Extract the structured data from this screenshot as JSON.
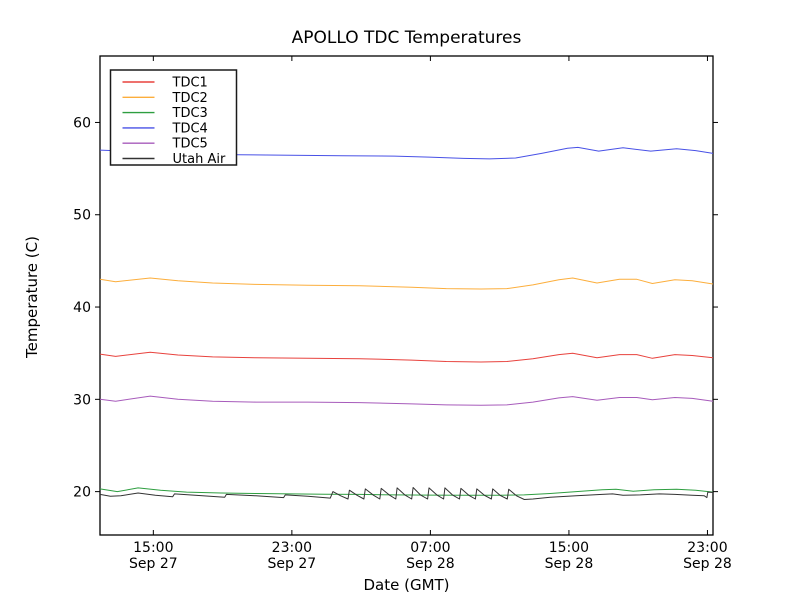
{
  "figure": {
    "title": "APOLLO TDC Temperatures",
    "xlabel": "Date (GMT)",
    "ylabel": "Temperature (C)"
  },
  "chart_data": {
    "type": "line",
    "title": "APOLLO TDC Temperatures",
    "xlabel": "Date (GMT)",
    "ylabel": "Temperature (C)",
    "x_unit": "hours elapsed, axis spans ~12:00 Sep 27 GMT to ~23:20 Sep 28 GMT",
    "xlim": [
      0,
      35.4
    ],
    "ylim": [
      15.3,
      67.2
    ],
    "yticks": [
      20,
      30,
      40,
      50,
      60
    ],
    "xticks": [
      {
        "h": 3.08,
        "time": "15:00",
        "date": "Sep 27"
      },
      {
        "h": 11.08,
        "time": "23:00",
        "date": "Sep 27"
      },
      {
        "h": 19.08,
        "time": "07:00",
        "date": "Sep 28"
      },
      {
        "h": 27.08,
        "time": "15:00",
        "date": "Sep 28"
      },
      {
        "h": 35.08,
        "time": "23:00",
        "date": "Sep 28"
      }
    ],
    "grid": false,
    "legend": {
      "position": "upper-left",
      "border_color": "#1a1a1a",
      "background": "#ffffff"
    },
    "axis_color": "#000000",
    "series": [
      {
        "name": "TDC1",
        "color": "#e8423d",
        "points": [
          [
            0,
            34.9
          ],
          [
            0.9,
            34.65
          ],
          [
            2.9,
            35.1
          ],
          [
            4.5,
            34.8
          ],
          [
            6.5,
            34.6
          ],
          [
            9,
            34.5
          ],
          [
            12,
            34.45
          ],
          [
            15,
            34.4
          ],
          [
            18,
            34.25
          ],
          [
            20,
            34.1
          ],
          [
            22,
            34.05
          ],
          [
            23.5,
            34.1
          ],
          [
            25,
            34.4
          ],
          [
            26.5,
            34.85
          ],
          [
            27.3,
            35.0
          ],
          [
            28.7,
            34.5
          ],
          [
            30,
            34.85
          ],
          [
            31,
            34.85
          ],
          [
            31.9,
            34.45
          ],
          [
            33.2,
            34.85
          ],
          [
            34.2,
            34.75
          ],
          [
            35.4,
            34.5
          ]
        ]
      },
      {
        "name": "TDC2",
        "color": "#fcae3c",
        "points": [
          [
            0,
            43.0
          ],
          [
            0.9,
            42.75
          ],
          [
            2.9,
            43.15
          ],
          [
            4.5,
            42.85
          ],
          [
            6.5,
            42.6
          ],
          [
            9,
            42.45
          ],
          [
            12,
            42.35
          ],
          [
            15,
            42.3
          ],
          [
            18,
            42.15
          ],
          [
            20,
            42.0
          ],
          [
            22,
            41.95
          ],
          [
            23.5,
            42.0
          ],
          [
            25,
            42.4
          ],
          [
            26.5,
            42.95
          ],
          [
            27.3,
            43.15
          ],
          [
            28.7,
            42.6
          ],
          [
            30,
            43.0
          ],
          [
            31,
            43.0
          ],
          [
            31.9,
            42.55
          ],
          [
            33.2,
            42.95
          ],
          [
            34.2,
            42.85
          ],
          [
            35.4,
            42.5
          ]
        ]
      },
      {
        "name": "TDC3",
        "color": "#2e9e40",
        "points": [
          [
            0,
            20.3
          ],
          [
            1,
            20.0
          ],
          [
            2.2,
            20.4
          ],
          [
            3.5,
            20.15
          ],
          [
            5,
            19.95
          ],
          [
            7,
            19.85
          ],
          [
            9,
            19.8
          ],
          [
            11,
            19.75
          ],
          [
            13,
            19.72
          ],
          [
            15,
            19.7
          ],
          [
            17,
            19.65
          ],
          [
            19,
            19.62
          ],
          [
            21,
            19.6
          ],
          [
            23,
            19.6
          ],
          [
            24.5,
            19.65
          ],
          [
            26,
            19.8
          ],
          [
            27.5,
            20.0
          ],
          [
            29,
            20.2
          ],
          [
            29.8,
            20.25
          ],
          [
            30.8,
            20.05
          ],
          [
            32,
            20.2
          ],
          [
            33.3,
            20.25
          ],
          [
            34.4,
            20.15
          ],
          [
            35.4,
            19.95
          ]
        ]
      },
      {
        "name": "TDC4",
        "color": "#4851e6",
        "points": [
          [
            0,
            57.0
          ],
          [
            1.5,
            56.9
          ],
          [
            3,
            56.8
          ],
          [
            5,
            56.6
          ],
          [
            8,
            56.5
          ],
          [
            11,
            56.45
          ],
          [
            14,
            56.4
          ],
          [
            17,
            56.35
          ],
          [
            19,
            56.25
          ],
          [
            21,
            56.1
          ],
          [
            22.5,
            56.05
          ],
          [
            24,
            56.15
          ],
          [
            25.5,
            56.65
          ],
          [
            27,
            57.2
          ],
          [
            27.6,
            57.3
          ],
          [
            28.8,
            56.9
          ],
          [
            30.2,
            57.25
          ],
          [
            31.8,
            56.9
          ],
          [
            33.3,
            57.15
          ],
          [
            34.4,
            56.95
          ],
          [
            35.4,
            56.65
          ]
        ]
      },
      {
        "name": "TDC5",
        "color": "#a75bbb",
        "points": [
          [
            0,
            30.0
          ],
          [
            0.9,
            29.8
          ],
          [
            2.9,
            30.35
          ],
          [
            4.5,
            30.0
          ],
          [
            6.5,
            29.8
          ],
          [
            9,
            29.7
          ],
          [
            12,
            29.7
          ],
          [
            15,
            29.65
          ],
          [
            18,
            29.5
          ],
          [
            20,
            29.4
          ],
          [
            22,
            29.35
          ],
          [
            23.5,
            29.4
          ],
          [
            25,
            29.7
          ],
          [
            26.5,
            30.15
          ],
          [
            27.3,
            30.3
          ],
          [
            28.7,
            29.9
          ],
          [
            30,
            30.2
          ],
          [
            31,
            30.2
          ],
          [
            31.9,
            29.95
          ],
          [
            33.2,
            30.2
          ],
          [
            34.2,
            30.1
          ],
          [
            35.4,
            29.8
          ]
        ]
      },
      {
        "name": "Utah Air",
        "color": "#333333",
        "points": [
          [
            0,
            19.7
          ],
          [
            0.6,
            19.5
          ],
          [
            1.2,
            19.55
          ],
          [
            2.2,
            19.85
          ],
          [
            3.2,
            19.6
          ],
          [
            4.2,
            19.45
          ],
          [
            4.3,
            19.75
          ],
          [
            5.5,
            19.6
          ],
          [
            7.2,
            19.4
          ],
          [
            7.3,
            19.7
          ],
          [
            9,
            19.55
          ],
          [
            10.6,
            19.35
          ],
          [
            10.7,
            19.65
          ],
          [
            12,
            19.5
          ],
          [
            13.3,
            19.3
          ],
          [
            13.45,
            20.0
          ],
          [
            13.9,
            19.55
          ],
          [
            14.32,
            19.2
          ],
          [
            14.4,
            20.15
          ],
          [
            14.85,
            19.6
          ],
          [
            15.24,
            19.2
          ],
          [
            15.32,
            20.3
          ],
          [
            15.8,
            19.6
          ],
          [
            16.16,
            19.2
          ],
          [
            16.24,
            20.35
          ],
          [
            16.7,
            19.65
          ],
          [
            17.08,
            19.2
          ],
          [
            17.16,
            20.4
          ],
          [
            17.6,
            19.65
          ],
          [
            18.0,
            19.2
          ],
          [
            18.08,
            20.45
          ],
          [
            18.5,
            19.65
          ],
          [
            18.92,
            19.2
          ],
          [
            19.0,
            20.4
          ],
          [
            19.45,
            19.65
          ],
          [
            19.84,
            19.2
          ],
          [
            19.92,
            20.4
          ],
          [
            20.35,
            19.65
          ],
          [
            20.76,
            19.2
          ],
          [
            20.84,
            20.35
          ],
          [
            21.3,
            19.6
          ],
          [
            21.68,
            19.2
          ],
          [
            21.76,
            20.3
          ],
          [
            22.2,
            19.6
          ],
          [
            22.6,
            19.2
          ],
          [
            22.68,
            20.3
          ],
          [
            23.1,
            19.6
          ],
          [
            23.52,
            19.2
          ],
          [
            23.6,
            20.25
          ],
          [
            24.05,
            19.55
          ],
          [
            24.5,
            19.15
          ],
          [
            25,
            19.2
          ],
          [
            26,
            19.4
          ],
          [
            27.5,
            19.55
          ],
          [
            29,
            19.7
          ],
          [
            29.6,
            19.75
          ],
          [
            30.2,
            19.6
          ],
          [
            31.2,
            19.65
          ],
          [
            32.3,
            19.75
          ],
          [
            33.2,
            19.7
          ],
          [
            34.2,
            19.6
          ],
          [
            34.9,
            19.55
          ],
          [
            35.05,
            19.35
          ],
          [
            35.1,
            19.95
          ],
          [
            35.4,
            19.9
          ]
        ]
      }
    ]
  }
}
